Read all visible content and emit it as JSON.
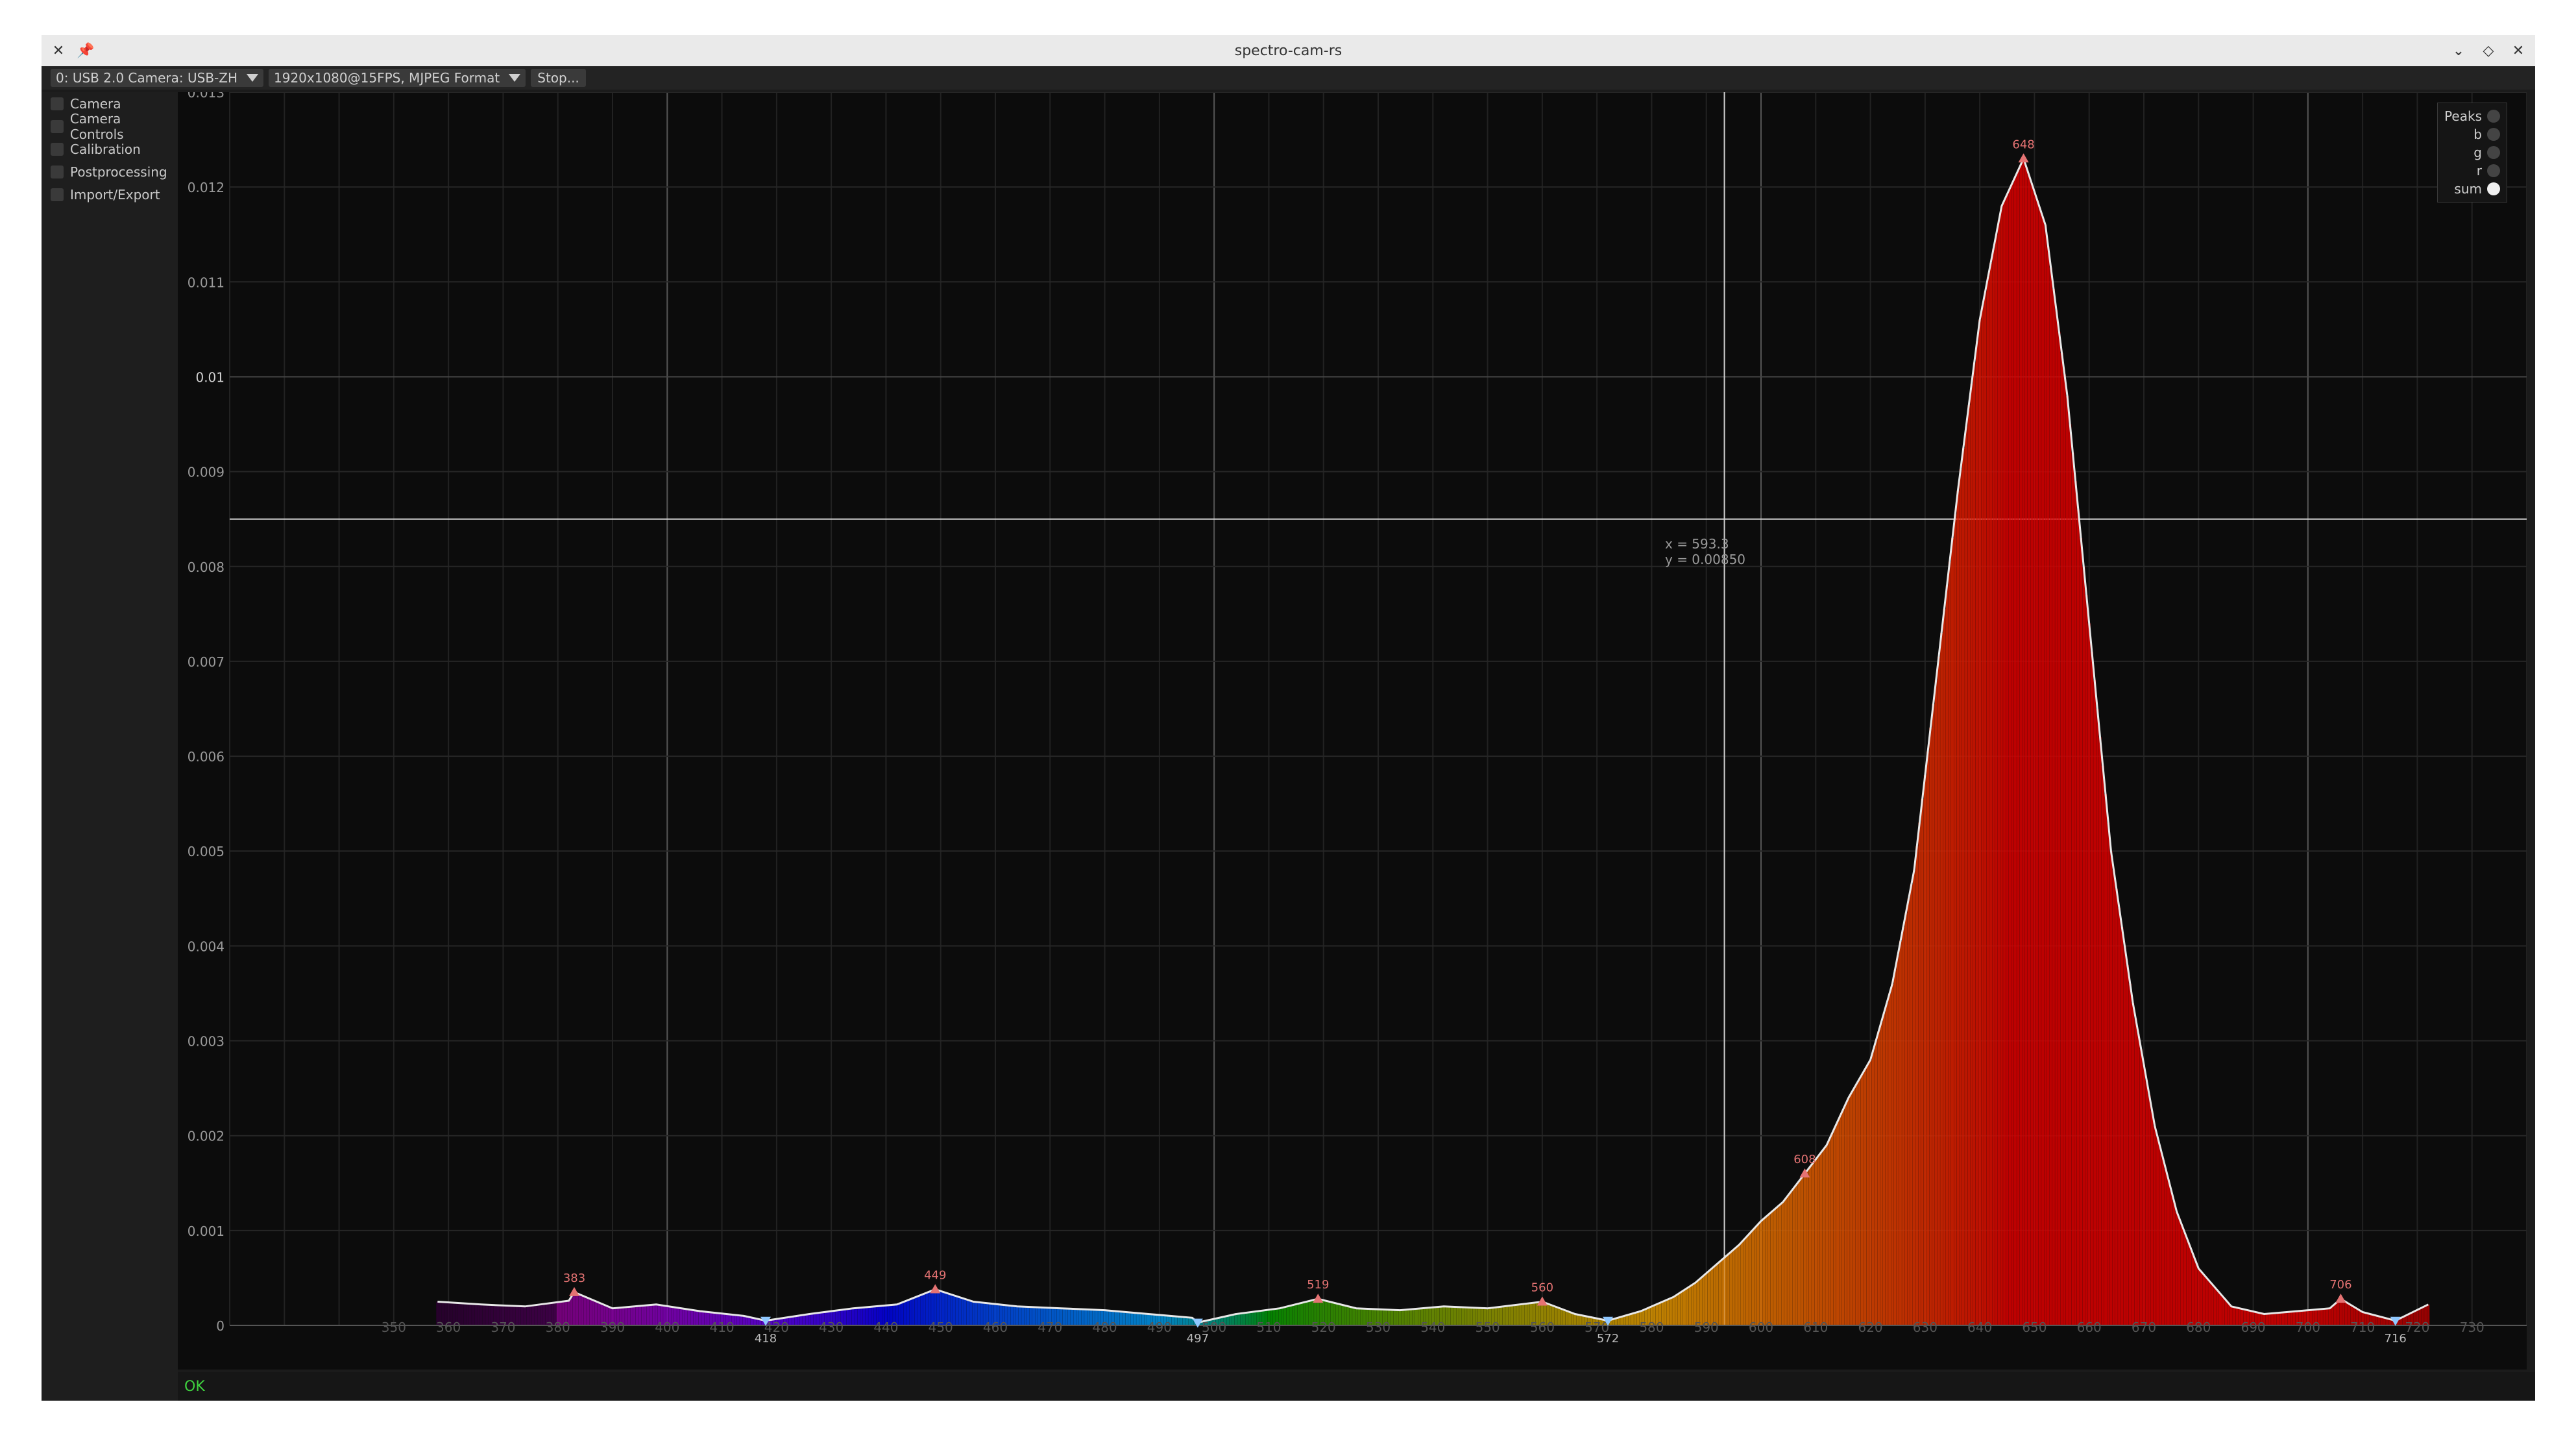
{
  "window": {
    "title": "spectro-cam-rs"
  },
  "titlebar_icons": {
    "left": [
      "app-icon",
      "pin-icon"
    ],
    "right": [
      "minimize-icon",
      "maximize-icon",
      "close-icon"
    ]
  },
  "toolbar": {
    "camera_select": "0: USB 2.0 Camera: USB-ZH",
    "format_select": "1920x1080@15FPS, MJPEG Format",
    "stop_label": "Stop..."
  },
  "sidebar": {
    "items": [
      {
        "label": "Camera",
        "checked": false
      },
      {
        "label": "Camera Controls",
        "checked": false
      },
      {
        "label": "Calibration",
        "checked": false
      },
      {
        "label": "Postprocessing",
        "checked": false
      },
      {
        "label": "Import/Export",
        "checked": false
      }
    ]
  },
  "legend": {
    "items": [
      {
        "label": "Peaks",
        "on": false
      },
      {
        "label": "b",
        "on": false
      },
      {
        "label": "g",
        "on": false
      },
      {
        "label": "r",
        "on": false
      },
      {
        "label": "sum",
        "on": true
      }
    ]
  },
  "cursor": {
    "x_text": "x = 593.3",
    "y_text": "y = 0.00850"
  },
  "status": {
    "text": "OK",
    "color": "#3fd13f"
  },
  "chart_data": {
    "type": "area",
    "title": "",
    "xlabel": "",
    "ylabel": "",
    "xlim": [
      320,
      740
    ],
    "ylim": [
      0,
      0.013
    ],
    "yticks": [
      "0",
      "0.001",
      "0.002",
      "0.003",
      "0.004",
      "0.005",
      "0.006",
      "0.007",
      "0.008",
      "0.009",
      "0.01",
      "0.011",
      "0.012",
      "0.013"
    ],
    "xticks": [
      "350",
      "360",
      "370",
      "380",
      "390",
      "400",
      "410",
      "420",
      "430",
      "440",
      "450",
      "460",
      "470",
      "480",
      "490",
      "500",
      "510",
      "520",
      "530",
      "540",
      "550",
      "560",
      "570",
      "580",
      "590",
      "600",
      "610",
      "620",
      "630",
      "640",
      "650",
      "660",
      "670",
      "680",
      "690",
      "700",
      "710",
      "720",
      "730"
    ],
    "series": [
      {
        "x": [
          358,
          366,
          374,
          382,
          383,
          390,
          398,
          406,
          414,
          418,
          426,
          434,
          442,
          449,
          456,
          464,
          472,
          480,
          488,
          496,
          497,
          504,
          512,
          519,
          526,
          534,
          542,
          550,
          560,
          566,
          572,
          578,
          584,
          588,
          592,
          596,
          600,
          604,
          608,
          612,
          616,
          620,
          624,
          628,
          632,
          636,
          640,
          644,
          648,
          652,
          656,
          660,
          664,
          668,
          672,
          676,
          680,
          686,
          692,
          698,
          704,
          706,
          710,
          716,
          722
        ],
        "values": [
          0.00025,
          0.00022,
          0.0002,
          0.00026,
          0.00035,
          0.00018,
          0.00022,
          0.00015,
          0.0001,
          5e-05,
          0.00012,
          0.00018,
          0.00022,
          0.00038,
          0.00025,
          0.0002,
          0.00018,
          0.00016,
          0.00012,
          8e-05,
          3e-05,
          0.00012,
          0.00018,
          0.00028,
          0.00018,
          0.00016,
          0.0002,
          0.00018,
          0.00025,
          0.00012,
          5e-05,
          0.00015,
          0.0003,
          0.00045,
          0.00065,
          0.00085,
          0.0011,
          0.0013,
          0.0016,
          0.0019,
          0.0024,
          0.0028,
          0.0036,
          0.0048,
          0.0068,
          0.0088,
          0.0106,
          0.0118,
          0.0123,
          0.0116,
          0.0098,
          0.0074,
          0.005,
          0.0034,
          0.0021,
          0.0012,
          0.0006,
          0.0002,
          0.00012,
          0.00015,
          0.00018,
          0.00028,
          0.00014,
          5e-05,
          0.00022
        ]
      }
    ],
    "peak_labels": [
      {
        "x": 383,
        "label": "383",
        "kind": "peak",
        "value": 0.00035
      },
      {
        "x": 449,
        "label": "449",
        "kind": "peak",
        "value": 0.00038
      },
      {
        "x": 519,
        "label": "519",
        "kind": "peak",
        "value": 0.00028
      },
      {
        "x": 560,
        "label": "560",
        "kind": "peak",
        "value": 0.00025
      },
      {
        "x": 608,
        "label": "608",
        "kind": "peak",
        "value": 0.0016
      },
      {
        "x": 648,
        "label": "648",
        "kind": "peak",
        "value": 0.0123
      },
      {
        "x": 706,
        "label": "706",
        "kind": "peak",
        "value": 0.00028
      },
      {
        "x": 418,
        "label": "418",
        "kind": "valley",
        "value": 5e-05
      },
      {
        "x": 497,
        "label": "497",
        "kind": "valley",
        "value": 3e-05
      },
      {
        "x": 572,
        "label": "572",
        "kind": "valley",
        "value": 5e-05
      },
      {
        "x": 716,
        "label": "716",
        "kind": "valley",
        "value": 5e-05
      }
    ],
    "grid": true,
    "legend_position": "top-right"
  }
}
